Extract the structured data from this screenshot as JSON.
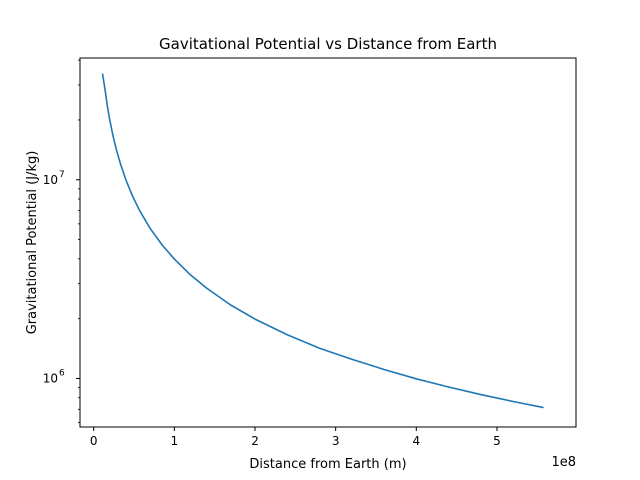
{
  "chart_data": {
    "type": "line",
    "title": "Gavitational Potential vs Distance from Earth",
    "xlabel": "Distance from Earth (m)",
    "ylabel": "Gravitational Potential (J/kg)",
    "x_offset_label": "1e8",
    "xscale": "linear",
    "yscale": "log",
    "xlim": [
      -0.17,
      5.98
    ],
    "ylim": [
      570000,
      41000000
    ],
    "x_ticks": [
      {
        "value": 0,
        "label": "0"
      },
      {
        "value": 1,
        "label": "1"
      },
      {
        "value": 2,
        "label": "2"
      },
      {
        "value": 3,
        "label": "3"
      },
      {
        "value": 4,
        "label": "4"
      },
      {
        "value": 5,
        "label": "5"
      }
    ],
    "y_ticks": [
      {
        "value": 1000000,
        "base": "10",
        "exp": "6"
      },
      {
        "value": 10000000,
        "base": "10",
        "exp": "7"
      }
    ],
    "grid": false,
    "line_color": "#1f77b4",
    "series": [
      {
        "x": [
          0.11,
          0.14,
          0.17,
          0.2,
          0.24,
          0.28,
          0.33,
          0.4,
          0.48,
          0.57,
          0.7,
          0.85,
          1.0,
          1.2,
          1.4,
          1.7,
          2.0,
          2.4,
          2.8,
          3.2,
          3.6,
          4.0,
          4.4,
          4.8,
          5.2,
          5.57
        ],
        "y": [
          34000000,
          28500000,
          23400000,
          19900000,
          16600000,
          14200000,
          12100000,
          9960000,
          8300000,
          6990000,
          5690000,
          4690000,
          3990000,
          3320000,
          2850000,
          2340000,
          1990000,
          1660000,
          1420000,
          1250000,
          1110000,
          996000,
          906000,
          830000,
          766000,
          715000
        ]
      }
    ]
  }
}
